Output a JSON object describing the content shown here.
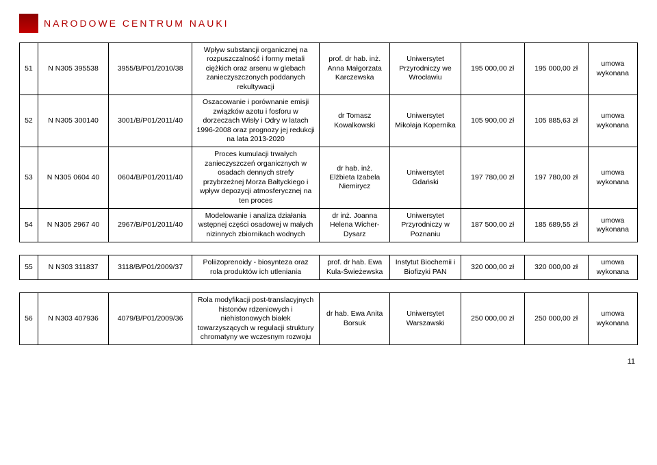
{
  "header": {
    "title": "NARODOWE CENTRUM NAUKI"
  },
  "page_number": "11",
  "table_borders": "#000000",
  "header_color": "#b20000",
  "groups": [
    {
      "rows": [
        {
          "num": "51",
          "grant_no": "N N305 395538",
          "ref_no": "3955/B/P01/2010/38",
          "description": "Wpływ substancji organicznej na rozpuszczalność i formy metali ciężkich oraz arsenu w glebach zanieczyszczonych poddanych rekultywacji",
          "person": "prof. dr hab. inż. Anna Małgorzata Karczewska",
          "institution": "Uniwersytet Przyrodniczy we Wrocławiu",
          "amount1": "195 000,00 zł",
          "amount2": "195 000,00 zł",
          "status": "umowa wykonana"
        },
        {
          "num": "52",
          "grant_no": "N N305 300140",
          "ref_no": "3001/B/P01/2011/40",
          "description": "Oszacowanie i porównanie emisji związków azotu i fosforu w dorzeczach Wisły i Odry w latach 1996-2008 oraz prognozy jej redukcji na lata 2013-2020",
          "person": "dr Tomasz Kowalkowski",
          "institution": "Uniwersytet Mikołaja Kopernika",
          "amount1": "105 900,00 zł",
          "amount2": "105 885,63 zł",
          "status": "umowa wykonana"
        },
        {
          "num": "53",
          "grant_no": "N N305 0604 40",
          "ref_no": "0604/B/P01/2011/40",
          "description": "Proces kumulacji trwałych zanieczyszczeń organicznych w osadach dennych strefy przybrzeżnej Morza Bałtyckiego i wpływ depozycji atmosferycznej na ten proces",
          "person": "dr hab. inż. Elżbieta Izabela Niemirycz",
          "institution": "Uniwersytet Gdański",
          "amount1": "197 780,00 zł",
          "amount2": "197 780,00 zł",
          "status": "umowa wykonana"
        },
        {
          "num": "54",
          "grant_no": "N N305 2967 40",
          "ref_no": "2967/B/P01/2011/40",
          "description": "Modelowanie i analiza działania wstępnej części osadowej w małych nizinnych zbiornikach wodnych",
          "person": "dr inż. Joanna Helena Wicher-Dysarz",
          "institution": "Uniwersytet Przyrodniczy w Poznaniu",
          "amount1": "187 500,00 zł",
          "amount2": "185 689,55 zł",
          "status": "umowa wykonana"
        }
      ]
    },
    {
      "rows": [
        {
          "num": "55",
          "grant_no": "N N303 311837",
          "ref_no": "3118/B/P01/2009/37",
          "description": "Poliizoprenoidy - biosynteza oraz rola produktów ich utleniania",
          "person": "prof. dr hab. Ewa Kula-Świeżewska",
          "institution": "Instytut Biochemii i Biofizyki PAN",
          "amount1": "320 000,00 zł",
          "amount2": "320 000,00 zł",
          "status": "umowa wykonana"
        }
      ]
    },
    {
      "rows": [
        {
          "num": "56",
          "grant_no": "N N303 407936",
          "ref_no": "4079/B/P01/2009/36",
          "description": "Rola modyfikacji post-translacyjnych histonów rdzeniowych i niehistonowych białek towarzyszących w regulacji struktury chromatyny we wczesnym rozwoju",
          "person": "dr hab. Ewa Anita Borsuk",
          "institution": "Uniwersytet Warszawski",
          "amount1": "250 000,00 zł",
          "amount2": "250 000,00 zł",
          "status": "umowa wykonana"
        }
      ]
    }
  ]
}
